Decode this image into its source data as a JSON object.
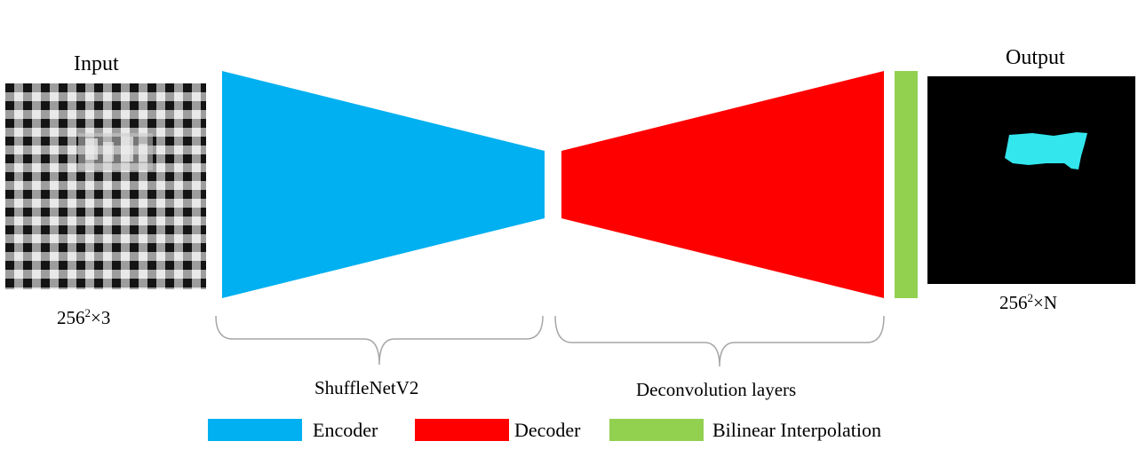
{
  "input": {
    "title": "Input",
    "dims_base": "256",
    "dims_exp": "2",
    "dims_rest": "×3"
  },
  "output": {
    "title": "Output",
    "dims_base": "256",
    "dims_exp": "2",
    "dims_rest": "×N"
  },
  "braces": {
    "encoder_label": "ShuffleNetV2",
    "decoder_label": "Deconvolution layers"
  },
  "legend": {
    "items": [
      {
        "label": "Encoder",
        "color": "#00b0f0"
      },
      {
        "label": "Decoder",
        "color": "#ff0000"
      },
      {
        "label": "Bilinear Interpolation",
        "color": "#92d050"
      }
    ]
  },
  "colors": {
    "encoder": "#00b0f0",
    "decoder": "#ff0000",
    "bilinear": "#92d050",
    "output_bg": "#000000",
    "output_mask": "#33e6ee",
    "brace": "#a6a6a6"
  }
}
